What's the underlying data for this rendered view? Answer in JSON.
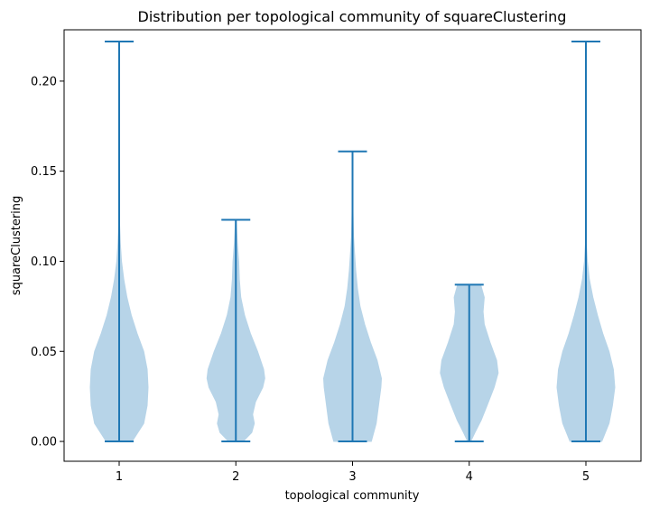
{
  "chart_data": {
    "type": "violin",
    "title": "Distribution per topological community of squareClustering",
    "xlabel": "topological community",
    "ylabel": "squareClustering",
    "categories": [
      "1",
      "2",
      "3",
      "4",
      "5"
    ],
    "ylim": [
      -0.011,
      0.2285
    ],
    "yticks": [
      0.0,
      0.05,
      0.1,
      0.15,
      0.2
    ],
    "ytick_labels": [
      "0.00",
      "0.05",
      "0.10",
      "0.15",
      "0.20"
    ],
    "colors": {
      "body": "#b7d4e8",
      "lines": "#1f77b4"
    },
    "series": [
      {
        "category": "1",
        "min": 0.0,
        "max": 0.222,
        "profile": [
          [
            0.0,
            0.45
          ],
          [
            0.01,
            0.85
          ],
          [
            0.02,
            0.97
          ],
          [
            0.03,
            1.0
          ],
          [
            0.04,
            0.97
          ],
          [
            0.05,
            0.85
          ],
          [
            0.06,
            0.62
          ],
          [
            0.07,
            0.42
          ],
          [
            0.08,
            0.27
          ],
          [
            0.09,
            0.16
          ],
          [
            0.1,
            0.08
          ],
          [
            0.11,
            0.04
          ],
          [
            0.12,
            0.015
          ],
          [
            0.14,
            0.008
          ],
          [
            0.16,
            0.005
          ],
          [
            0.18,
            0.004
          ],
          [
            0.2,
            0.003
          ],
          [
            0.222,
            0.002
          ]
        ]
      },
      {
        "category": "2",
        "min": 0.0,
        "max": 0.123,
        "profile": [
          [
            0.0,
            0.25
          ],
          [
            0.005,
            0.55
          ],
          [
            0.01,
            0.64
          ],
          [
            0.015,
            0.58
          ],
          [
            0.022,
            0.68
          ],
          [
            0.03,
            0.93
          ],
          [
            0.035,
            1.0
          ],
          [
            0.04,
            0.96
          ],
          [
            0.05,
            0.75
          ],
          [
            0.06,
            0.5
          ],
          [
            0.07,
            0.3
          ],
          [
            0.08,
            0.17
          ],
          [
            0.09,
            0.12
          ],
          [
            0.1,
            0.1
          ],
          [
            0.11,
            0.05
          ],
          [
            0.123,
            0.01
          ]
        ]
      },
      {
        "category": "3",
        "min": 0.0,
        "max": 0.161,
        "profile": [
          [
            0.0,
            0.65
          ],
          [
            0.01,
            0.82
          ],
          [
            0.02,
            0.9
          ],
          [
            0.03,
            0.98
          ],
          [
            0.035,
            1.0
          ],
          [
            0.045,
            0.85
          ],
          [
            0.055,
            0.62
          ],
          [
            0.065,
            0.42
          ],
          [
            0.075,
            0.26
          ],
          [
            0.085,
            0.17
          ],
          [
            0.095,
            0.11
          ],
          [
            0.105,
            0.07
          ],
          [
            0.115,
            0.03
          ],
          [
            0.13,
            0.012
          ],
          [
            0.15,
            0.006
          ],
          [
            0.161,
            0.004
          ]
        ]
      },
      {
        "category": "4",
        "min": 0.0,
        "max": 0.087,
        "profile": [
          [
            0.0,
            0.05
          ],
          [
            0.005,
            0.2
          ],
          [
            0.012,
            0.42
          ],
          [
            0.02,
            0.62
          ],
          [
            0.03,
            0.86
          ],
          [
            0.038,
            1.0
          ],
          [
            0.045,
            0.95
          ],
          [
            0.055,
            0.72
          ],
          [
            0.065,
            0.52
          ],
          [
            0.072,
            0.48
          ],
          [
            0.08,
            0.52
          ],
          [
            0.087,
            0.4
          ]
        ]
      },
      {
        "category": "5",
        "min": 0.0,
        "max": 0.222,
        "profile": [
          [
            0.0,
            0.55
          ],
          [
            0.01,
            0.8
          ],
          [
            0.02,
            0.92
          ],
          [
            0.03,
            1.0
          ],
          [
            0.04,
            0.95
          ],
          [
            0.05,
            0.8
          ],
          [
            0.06,
            0.58
          ],
          [
            0.07,
            0.4
          ],
          [
            0.08,
            0.24
          ],
          [
            0.09,
            0.12
          ],
          [
            0.1,
            0.05
          ],
          [
            0.11,
            0.015
          ],
          [
            0.13,
            0.006
          ],
          [
            0.16,
            0.004
          ],
          [
            0.2,
            0.003
          ],
          [
            0.222,
            0.002
          ]
        ]
      }
    ]
  }
}
